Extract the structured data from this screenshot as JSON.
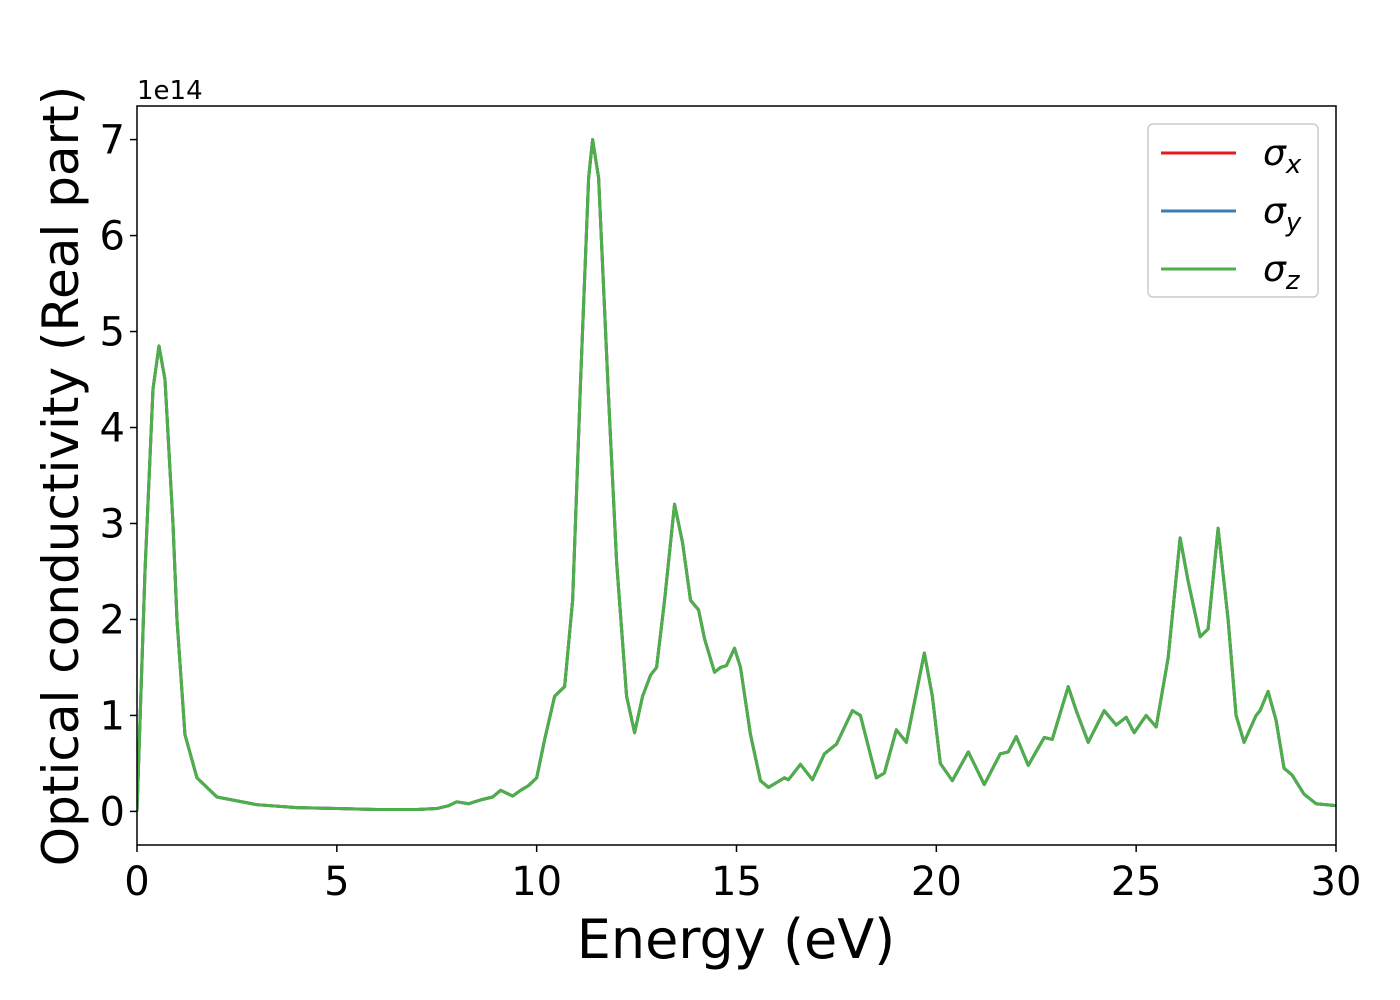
{
  "chart_data": {
    "type": "line",
    "xlabel": "Energy (eV)",
    "ylabel": "Optical conductivity (Real part)",
    "offset_label": "1e14",
    "x": [
      0,
      0.2,
      0.4,
      0.55,
      0.7,
      0.9,
      1.0,
      1.2,
      1.5,
      2,
      3,
      4,
      5,
      6,
      7,
      7.5,
      7.8,
      8.0,
      8.3,
      8.6,
      8.9,
      9.1,
      9.4,
      9.6,
      9.8,
      10.0,
      10.2,
      10.45,
      10.7,
      10.9,
      11.1,
      11.3,
      11.4,
      11.55,
      11.8,
      12.0,
      12.25,
      12.45,
      12.65,
      12.85,
      13.0,
      13.2,
      13.45,
      13.65,
      13.85,
      14.05,
      14.2,
      14.45,
      14.6,
      14.75,
      14.95,
      15.1,
      15.35,
      15.6,
      15.8,
      16.0,
      16.2,
      16.3,
      16.6,
      16.9,
      17.2,
      17.5,
      17.9,
      18.1,
      18.5,
      18.7,
      19.0,
      19.25,
      19.7,
      19.9,
      20.1,
      20.4,
      20.8,
      21.2,
      21.6,
      21.8,
      22.0,
      22.3,
      22.7,
      22.9,
      23.3,
      23.5,
      23.8,
      24.2,
      24.5,
      24.75,
      24.95,
      25.25,
      25.5,
      25.8,
      26.1,
      26.3,
      26.6,
      26.8,
      27.05,
      27.3,
      27.5,
      27.7,
      28.0,
      28.1,
      28.3,
      28.5,
      28.7,
      28.9,
      29.2,
      29.5,
      30
    ],
    "series": [
      {
        "name": "σx",
        "color": "#e41a1c",
        "values": [
          0,
          2.5,
          4.4,
          4.85,
          4.5,
          3.0,
          2.0,
          0.8,
          0.35,
          0.15,
          0.07,
          0.04,
          0.03,
          0.02,
          0.02,
          0.03,
          0.06,
          0.1,
          0.08,
          0.12,
          0.15,
          0.22,
          0.16,
          0.22,
          0.27,
          0.35,
          0.75,
          1.2,
          1.3,
          2.2,
          4.5,
          6.6,
          7.0,
          6.6,
          4.3,
          2.6,
          1.2,
          0.82,
          1.2,
          1.42,
          1.5,
          2.2,
          3.2,
          2.8,
          2.2,
          2.1,
          1.8,
          1.45,
          1.5,
          1.52,
          1.7,
          1.5,
          0.8,
          0.32,
          0.25,
          0.3,
          0.35,
          0.33,
          0.49,
          0.33,
          0.6,
          0.7,
          1.05,
          1.0,
          0.35,
          0.4,
          0.85,
          0.72,
          1.65,
          1.2,
          0.5,
          0.32,
          0.62,
          0.28,
          0.6,
          0.62,
          0.78,
          0.48,
          0.77,
          0.75,
          1.3,
          1.05,
          0.72,
          1.05,
          0.9,
          0.98,
          0.82,
          1.0,
          0.88,
          1.6,
          2.85,
          2.4,
          1.82,
          1.9,
          2.95,
          2.0,
          1.0,
          0.72,
          1.0,
          1.05,
          1.25,
          0.95,
          0.45,
          0.38,
          0.18,
          0.08,
          0.06
        ]
      },
      {
        "name": "σy",
        "color": "#377eb8",
        "values": [
          0,
          2.5,
          4.4,
          4.85,
          4.5,
          3.0,
          2.0,
          0.8,
          0.35,
          0.15,
          0.07,
          0.04,
          0.03,
          0.02,
          0.02,
          0.03,
          0.06,
          0.1,
          0.08,
          0.12,
          0.15,
          0.22,
          0.16,
          0.22,
          0.27,
          0.35,
          0.75,
          1.2,
          1.3,
          2.2,
          4.5,
          6.6,
          7.0,
          6.6,
          4.3,
          2.6,
          1.2,
          0.82,
          1.2,
          1.42,
          1.5,
          2.2,
          3.2,
          2.8,
          2.2,
          2.1,
          1.8,
          1.45,
          1.5,
          1.52,
          1.7,
          1.5,
          0.8,
          0.32,
          0.25,
          0.3,
          0.35,
          0.33,
          0.49,
          0.33,
          0.6,
          0.7,
          1.05,
          1.0,
          0.35,
          0.4,
          0.85,
          0.72,
          1.65,
          1.2,
          0.5,
          0.32,
          0.62,
          0.28,
          0.6,
          0.62,
          0.78,
          0.48,
          0.77,
          0.75,
          1.3,
          1.05,
          0.72,
          1.05,
          0.9,
          0.98,
          0.82,
          1.0,
          0.88,
          1.6,
          2.85,
          2.4,
          1.82,
          1.9,
          2.95,
          2.0,
          1.0,
          0.72,
          1.0,
          1.05,
          1.25,
          0.95,
          0.45,
          0.38,
          0.18,
          0.08,
          0.06
        ]
      },
      {
        "name": "σz",
        "color": "#4daf4a",
        "values": [
          0,
          2.5,
          4.4,
          4.85,
          4.5,
          3.0,
          2.0,
          0.8,
          0.35,
          0.15,
          0.07,
          0.04,
          0.03,
          0.02,
          0.02,
          0.03,
          0.06,
          0.1,
          0.08,
          0.12,
          0.15,
          0.22,
          0.16,
          0.22,
          0.27,
          0.35,
          0.75,
          1.2,
          1.3,
          2.2,
          4.5,
          6.6,
          7.0,
          6.6,
          4.3,
          2.6,
          1.2,
          0.82,
          1.2,
          1.42,
          1.5,
          2.2,
          3.2,
          2.8,
          2.2,
          2.1,
          1.8,
          1.45,
          1.5,
          1.52,
          1.7,
          1.5,
          0.8,
          0.32,
          0.25,
          0.3,
          0.35,
          0.33,
          0.49,
          0.33,
          0.6,
          0.7,
          1.05,
          1.0,
          0.35,
          0.4,
          0.85,
          0.72,
          1.65,
          1.2,
          0.5,
          0.32,
          0.62,
          0.28,
          0.6,
          0.62,
          0.78,
          0.48,
          0.77,
          0.75,
          1.3,
          1.05,
          0.72,
          1.05,
          0.9,
          0.98,
          0.82,
          1.0,
          0.88,
          1.6,
          2.85,
          2.4,
          1.82,
          1.9,
          2.95,
          2.0,
          1.0,
          0.72,
          1.0,
          1.05,
          1.25,
          0.95,
          0.45,
          0.38,
          0.18,
          0.08,
          0.06
        ]
      }
    ],
    "xlim": [
      0,
      30
    ],
    "xticks": [
      0,
      5,
      10,
      15,
      20,
      25,
      30
    ],
    "ylim": [
      -0.35,
      7.35
    ],
    "yticks": [
      0,
      1,
      2,
      3,
      4,
      5,
      6,
      7
    ],
    "grid": false,
    "legend": "upper right"
  }
}
